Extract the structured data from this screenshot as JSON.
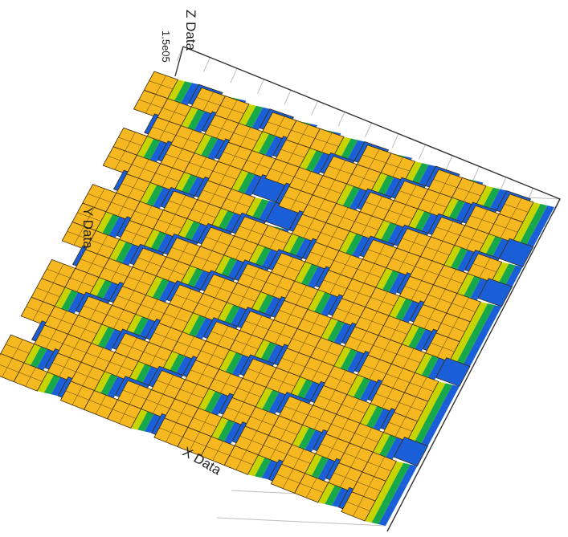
{
  "chart_data": {
    "type": "heatmap",
    "subtype": "3d-surface",
    "title": "",
    "xlabel": "X Data",
    "ylabel": "Y Data",
    "zlabel": "Z Data",
    "z_tick_top": "1.5e05",
    "grid": true,
    "colormap": [
      "#1a5fd8",
      "#17a84a",
      "#c8d400",
      "#f5b820"
    ],
    "note": "",
    "grid_size": 16,
    "z_values": [
      [
        1,
        0,
        1,
        1,
        0,
        1,
        1,
        1,
        0,
        1,
        1,
        0,
        1,
        1,
        0,
        1
      ],
      [
        1,
        1,
        0,
        1,
        1,
        0,
        1,
        0,
        1,
        1,
        0,
        1,
        1,
        0,
        1,
        1
      ],
      [
        0,
        1,
        1,
        0,
        1,
        1,
        1,
        1,
        1,
        0,
        1,
        1,
        0,
        1,
        1,
        0
      ],
      [
        1,
        0,
        1,
        1,
        1,
        0,
        0,
        1,
        1,
        1,
        1,
        0,
        1,
        1,
        0,
        1
      ],
      [
        1,
        1,
        1,
        0,
        1,
        1,
        0,
        0,
        1,
        1,
        0,
        1,
        1,
        1,
        1,
        0
      ],
      [
        0,
        1,
        0,
        1,
        1,
        0,
        1,
        1,
        0,
        1,
        1,
        1,
        0,
        1,
        1,
        1
      ],
      [
        1,
        1,
        1,
        1,
        0,
        1,
        1,
        0,
        1,
        0,
        1,
        1,
        1,
        0,
        1,
        1
      ],
      [
        1,
        0,
        1,
        0,
        1,
        1,
        0,
        1,
        1,
        1,
        0,
        1,
        1,
        1,
        0,
        1
      ],
      [
        1,
        1,
        0,
        1,
        1,
        0,
        1,
        1,
        0,
        1,
        1,
        0,
        1,
        1,
        1,
        0
      ],
      [
        0,
        1,
        1,
        1,
        0,
        1,
        1,
        0,
        1,
        1,
        1,
        1,
        0,
        1,
        1,
        1
      ],
      [
        1,
        1,
        0,
        1,
        1,
        1,
        0,
        1,
        1,
        0,
        1,
        1,
        1,
        0,
        1,
        1
      ],
      [
        1,
        0,
        1,
        1,
        0,
        1,
        1,
        1,
        0,
        1,
        1,
        0,
        1,
        1,
        0,
        1
      ],
      [
        1,
        1,
        1,
        0,
        1,
        1,
        0,
        1,
        1,
        1,
        0,
        1,
        1,
        1,
        1,
        0
      ],
      [
        0,
        1,
        1,
        1,
        1,
        0,
        1,
        1,
        0,
        1,
        1,
        1,
        0,
        1,
        1,
        1
      ],
      [
        1,
        0,
        1,
        1,
        0,
        1,
        1,
        1,
        1,
        0,
        1,
        1,
        1,
        0,
        1,
        1
      ],
      [
        1,
        1,
        0,
        1,
        1,
        1,
        0,
        1,
        1,
        1,
        1,
        0,
        1,
        1,
        0,
        1
      ]
    ]
  }
}
